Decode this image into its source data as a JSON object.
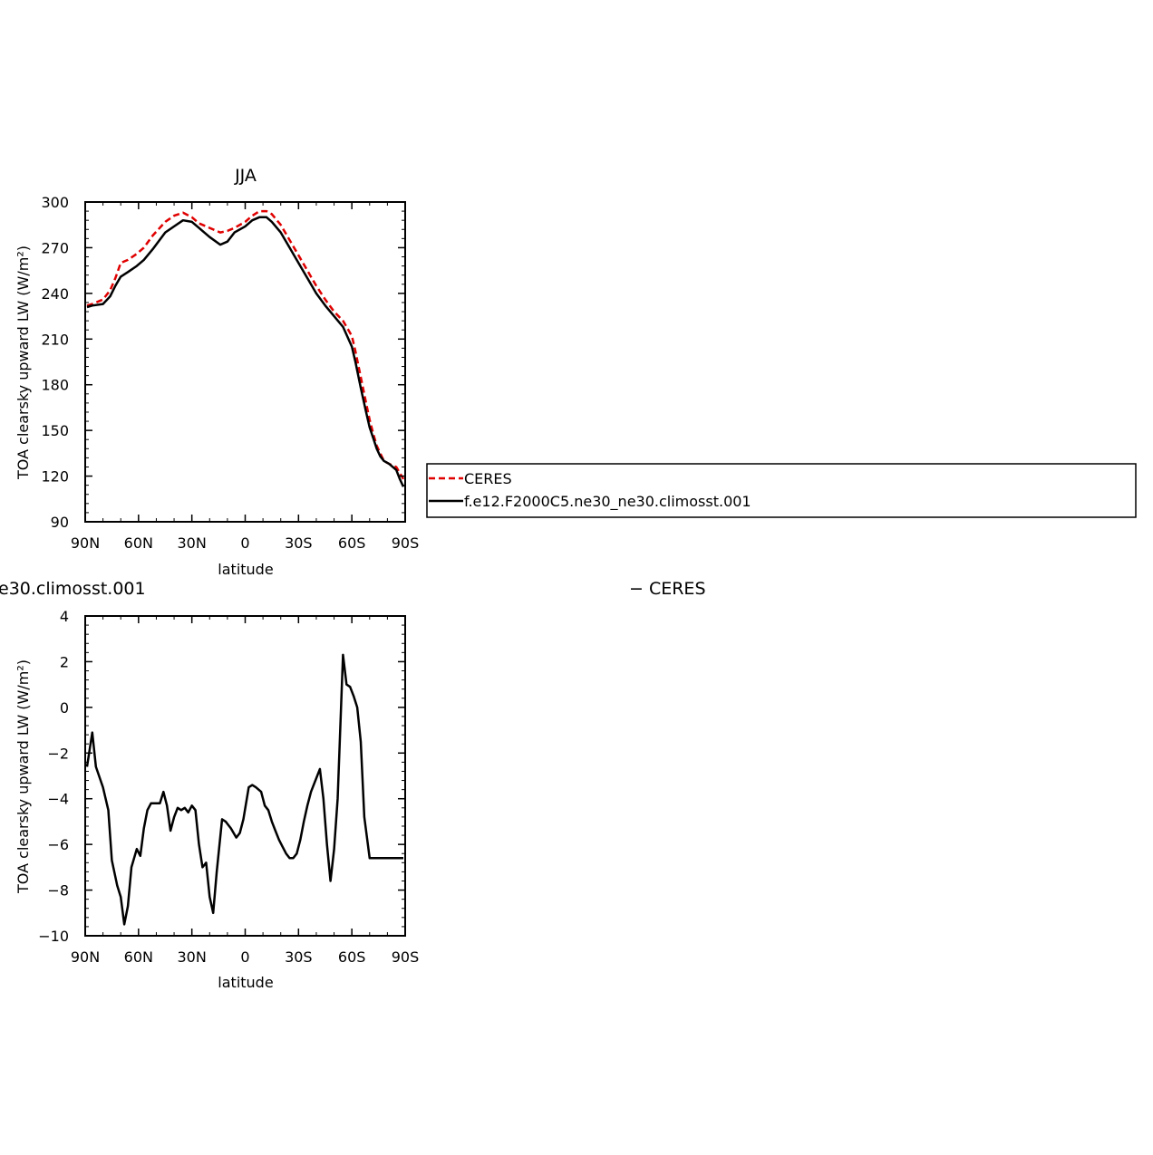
{
  "chart_data": [
    {
      "type": "line",
      "title": "JJA",
      "xlabel": "latitude",
      "ylabel": "TOA clearsky upward LW (W/m²)",
      "xlim": [
        90,
        -90
      ],
      "ylim": [
        90,
        300
      ],
      "xticks": [
        {
          "value": 90,
          "label": "90N"
        },
        {
          "value": 60,
          "label": "60N"
        },
        {
          "value": 30,
          "label": "30N"
        },
        {
          "value": 0,
          "label": "0"
        },
        {
          "value": -30,
          "label": "30S"
        },
        {
          "value": -60,
          "label": "60S"
        },
        {
          "value": -90,
          "label": "90S"
        }
      ],
      "yticks": [
        90,
        120,
        150,
        180,
        210,
        240,
        270,
        300
      ],
      "legend": {
        "placement": "right",
        "entries": [
          "CERES",
          "f.e12.F2000C5.ne30_ne30.climosst.001"
        ]
      },
      "series": [
        {
          "name": "CERES",
          "color": "#e00000",
          "dash": "dashed",
          "x": [
            89,
            86,
            80,
            76,
            73,
            70,
            66,
            61,
            57,
            52,
            45,
            40,
            35,
            30,
            26,
            20,
            14,
            10,
            6,
            0,
            -4,
            -8,
            -12,
            -15,
            -20,
            -25,
            -30,
            -35,
            -40,
            -45,
            -50,
            -55,
            -60,
            -62,
            -65,
            -68,
            -70,
            -72,
            -74,
            -76,
            -78,
            -81,
            -85,
            -87,
            -89
          ],
          "y": [
            232,
            233,
            236,
            242,
            250,
            260,
            262,
            266,
            270,
            278,
            287,
            291,
            293,
            290,
            286,
            283,
            280,
            281,
            283,
            287,
            291,
            294,
            294,
            292,
            285,
            275,
            265,
            255,
            245,
            236,
            228,
            222,
            212,
            202,
            185,
            168,
            157,
            148,
            140,
            135,
            130,
            128,
            126,
            122,
            118
          ]
        },
        {
          "name": "f.e12.F2000C5.ne30_ne30.climosst.001",
          "color": "#000000",
          "dash": "solid",
          "x": [
            89,
            86,
            80,
            76,
            73,
            70,
            66,
            61,
            57,
            52,
            45,
            40,
            35,
            30,
            26,
            20,
            14,
            10,
            6,
            0,
            -4,
            -8,
            -12,
            -15,
            -20,
            -25,
            -30,
            -35,
            -40,
            -45,
            -50,
            -55,
            -60,
            -62,
            -65,
            -68,
            -70,
            -72,
            -74,
            -76,
            -78,
            -81,
            -85,
            -87,
            -89
          ],
          "y": [
            231,
            232,
            233,
            238,
            245,
            251,
            254,
            258,
            262,
            269,
            280,
            284,
            288,
            287,
            283,
            277,
            272,
            274,
            280,
            284,
            288,
            290,
            290,
            287,
            280,
            270,
            260,
            250,
            240,
            232,
            225,
            218,
            205,
            195,
            178,
            162,
            152,
            145,
            138,
            133,
            130,
            128,
            124,
            118,
            113
          ]
        }
      ]
    },
    {
      "type": "line",
      "title": "e30.climosst.001 − CERES",
      "xlabel": "latitude",
      "ylabel": "TOA clearsky upward LW (W/m²)",
      "xlim": [
        90,
        -90
      ],
      "ylim": [
        -10,
        4
      ],
      "xticks": [
        {
          "value": 90,
          "label": "90N"
        },
        {
          "value": 60,
          "label": "60N"
        },
        {
          "value": 30,
          "label": "30N"
        },
        {
          "value": 0,
          "label": "0"
        },
        {
          "value": -30,
          "label": "30S"
        },
        {
          "value": -60,
          "label": "60S"
        },
        {
          "value": -90,
          "label": "90S"
        }
      ],
      "yticks": [
        {
          "value": 4,
          "label": "4"
        },
        {
          "value": 2,
          "label": "2"
        },
        {
          "value": 0,
          "label": "0"
        },
        {
          "value": -2,
          "label": "−2"
        },
        {
          "value": -4,
          "label": "−4"
        },
        {
          "value": -6,
          "label": "−6"
        },
        {
          "value": -8,
          "label": "−8"
        },
        {
          "value": -10,
          "label": "−10"
        }
      ],
      "series": [
        {
          "name": "",
          "color": "#000000",
          "dash": "solid",
          "x": [
            89,
            86,
            84,
            80,
            77,
            75,
            72,
            70,
            68,
            66,
            64,
            61,
            59,
            57,
            55,
            53,
            51,
            48,
            46,
            44,
            42,
            40,
            38,
            36,
            34,
            32,
            30,
            28,
            26,
            24,
            22,
            20,
            18,
            16,
            13,
            11,
            8,
            5,
            3,
            1,
            -2,
            -4,
            -6,
            -9,
            -11,
            -13,
            -15,
            -17,
            -19,
            -21,
            -23,
            -25,
            -27,
            -29,
            -31,
            -33,
            -35,
            -37,
            -39,
            -42,
            -44,
            -46,
            -48,
            -50,
            -52,
            -55,
            -57,
            -59,
            -61,
            -63,
            -65,
            -67,
            -70,
            -72,
            -74,
            -76,
            -78,
            -80,
            -82,
            -84,
            -87,
            -89
          ],
          "y": [
            -2.6,
            -1.1,
            -2.6,
            -3.5,
            -4.5,
            -6.7,
            -7.8,
            -8.3,
            -9.5,
            -8.7,
            -7.0,
            -6.2,
            -6.5,
            -5.3,
            -4.5,
            -4.2,
            -4.2,
            -4.2,
            -3.7,
            -4.3,
            -5.4,
            -4.8,
            -4.4,
            -4.5,
            -4.4,
            -4.6,
            -4.3,
            -4.5,
            -6.0,
            -7.0,
            -6.8,
            -8.3,
            -9.0,
            -7.2,
            -4.9,
            -5.0,
            -5.3,
            -5.7,
            -5.5,
            -4.9,
            -3.5,
            -3.4,
            -3.5,
            -3.7,
            -4.3,
            -4.5,
            -5.0,
            -5.4,
            -5.8,
            -6.1,
            -6.4,
            -6.6,
            -6.6,
            -6.4,
            -5.8,
            -5.0,
            -4.3,
            -3.7,
            -3.3,
            -2.7,
            -4.0,
            -6.0,
            -7.6,
            -6.2,
            -4.0,
            2.3,
            1.0,
            0.9,
            0.5,
            0.0,
            -1.5,
            -4.8,
            -6.6,
            -6.6,
            -6.6,
            -6.6,
            -6.6,
            -6.6,
            -6.6,
            -6.6,
            -6.6,
            -6.6
          ]
        }
      ]
    }
  ]
}
